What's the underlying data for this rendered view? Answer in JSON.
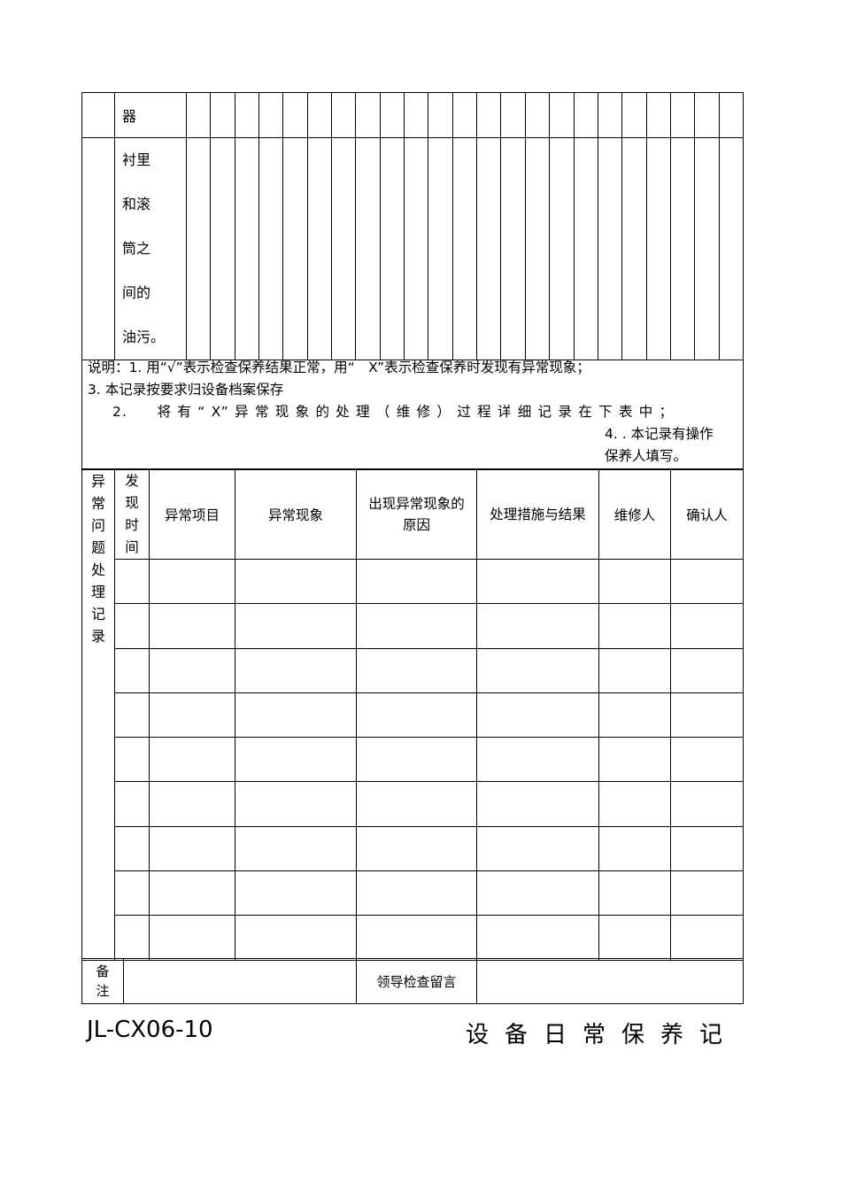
{
  "top_table": {
    "rows": [
      {
        "label": "器"
      },
      {
        "label_lines": [
          "衬 里",
          "和 滚",
          "筒 之",
          "间 的",
          "油污。"
        ]
      }
    ],
    "day_columns": 23
  },
  "notes": {
    "line1": "说明：1. 用“√”表示检查保养结果正常，用“　X”表示检查保养时发现有异常现象；",
    "line2": "3.  本记录按要求归设备档案保存",
    "line3": "2.　　将 有 “ X” 异 常 现 象 的 处 理 （ 维 修 ） 过 程 详 细 记 录 在 下 表 中 ；",
    "line4": "4. . 本记录有操作",
    "line5": "保养人填写。"
  },
  "abnormal_table": {
    "section_label": "异常问题处理记录",
    "headers": [
      "发现时间",
      "异常项目",
      "异常现象",
      "出现异常现象的原因",
      "处理措施与结果",
      "维修人",
      "确认人"
    ],
    "empty_rows": 9
  },
  "remarks": {
    "label": "备注",
    "leader_label": "领导检查留言"
  },
  "footer": {
    "code": "JL-CX06-10",
    "title": "设备日常保养记"
  }
}
